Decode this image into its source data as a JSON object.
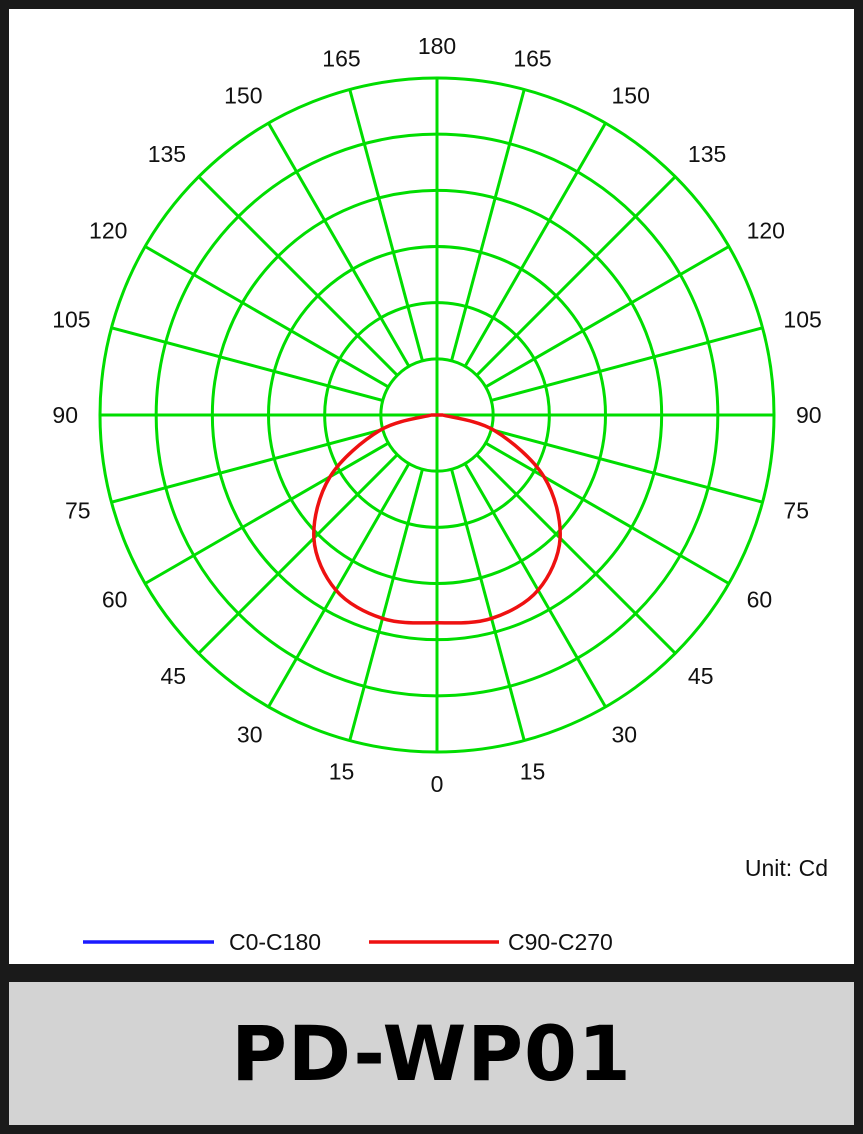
{
  "product": {
    "model": "PD-WP01"
  },
  "chart_data": {
    "type": "polar",
    "grid": true,
    "grid_color": "#00dd00",
    "angle_ticks_left": [
      "0",
      "15",
      "30",
      "45",
      "60",
      "75",
      "90",
      "105",
      "120",
      "135",
      "150",
      "165"
    ],
    "angle_ticks_right": [
      "15",
      "30",
      "45",
      "60",
      "75",
      "90",
      "105",
      "120",
      "135",
      "150",
      "165"
    ],
    "angle_top": "180",
    "unit_label": "Unit: Cd",
    "r_max": 6,
    "r_rings": [
      1,
      2,
      3,
      4,
      5,
      6
    ],
    "series": [
      {
        "name": "C0-C180",
        "color": "#1a1aff",
        "angles": [],
        "values": []
      },
      {
        "name": "C90-C270",
        "color": "#ee1111",
        "angles": [
          -90,
          -75,
          -60,
          -45,
          -30,
          -15,
          0,
          15,
          30,
          45,
          60,
          75,
          90
        ],
        "values": [
          0.1,
          1.05,
          2.2,
          3.1,
          3.6,
          3.75,
          3.7,
          3.75,
          3.6,
          3.1,
          2.2,
          1.05,
          0.1
        ]
      }
    ],
    "legend": {
      "position": "bottom-left"
    }
  }
}
